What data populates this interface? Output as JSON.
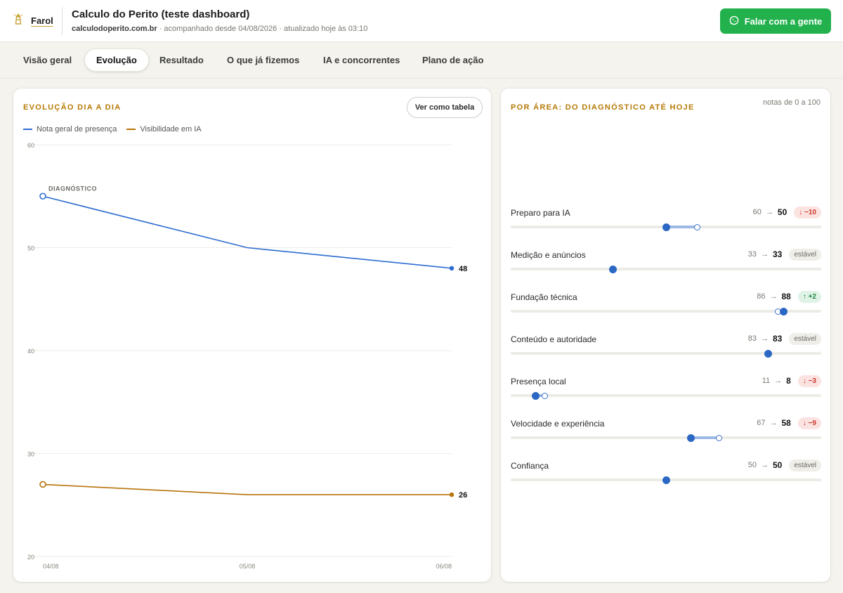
{
  "colors": {
    "accent": "#b67a06",
    "blue_series": "#2c6bd1",
    "orange_series": "#b8730a",
    "whatsapp": "#22b14c",
    "up": "#1f8a45",
    "down": "#c93a2e"
  },
  "header": {
    "brand": "Farol",
    "brand_icon": "lighthouse-icon",
    "title": "Calculo do Perito (teste dashboard)",
    "domain": "calculodoperito.com.br",
    "meta": "· acompanhado desde 04/08/2026 · atualizado hoje às 03:10",
    "cta_label": "Falar com a gente",
    "cta_icon": "whatsapp-icon"
  },
  "tabs": [
    "Visão geral",
    "Evolução",
    "Resultado",
    "O que já fizemos",
    "IA e concorrentes",
    "Plano de ação"
  ],
  "active_tab": 1,
  "evolution": {
    "title": "EVOLUÇÃO DIA A DIA",
    "table_button": "Ver como tabela",
    "annotation": "DIAGNÓSTICO"
  },
  "chart_data": {
    "type": "line",
    "x": [
      "04/08",
      "05/08",
      "06/08"
    ],
    "ylim": [
      20,
      60
    ],
    "yticks": [
      20,
      30,
      40,
      50,
      60
    ],
    "grid": true,
    "legend_position": "top-left",
    "series": [
      {
        "name": "Nota geral de presença",
        "color": "#2c6bd1",
        "values": [
          55,
          50,
          48
        ]
      },
      {
        "name": "Visibilidade em IA",
        "color": "#b8730a",
        "values": [
          27,
          26,
          26
        ]
      }
    ]
  },
  "areas": {
    "title": "POR ÁREA: DO DIAGNÓSTICO ATÉ HOJE",
    "scale_note": "notas de 0 a 100",
    "arrow": "→",
    "items": [
      {
        "label": "Preparo para IA",
        "from": 60,
        "to": 50,
        "badge": "↓ −10",
        "trend": "down"
      },
      {
        "label": "Medição e anúncios",
        "from": 33,
        "to": 33,
        "badge": "estável",
        "trend": "stable"
      },
      {
        "label": "Fundação técnica",
        "from": 86,
        "to": 88,
        "badge": "↑ +2",
        "trend": "up"
      },
      {
        "label": "Conteúdo e autoridade",
        "from": 83,
        "to": 83,
        "badge": "estável",
        "trend": "stable"
      },
      {
        "label": "Presença local",
        "from": 11,
        "to": 8,
        "badge": "↓ −3",
        "trend": "down"
      },
      {
        "label": "Velocidade e experiência",
        "from": 67,
        "to": 58,
        "badge": "↓ −9",
        "trend": "down"
      },
      {
        "label": "Confiança",
        "from": 50,
        "to": 50,
        "badge": "estável",
        "trend": "stable"
      }
    ]
  }
}
